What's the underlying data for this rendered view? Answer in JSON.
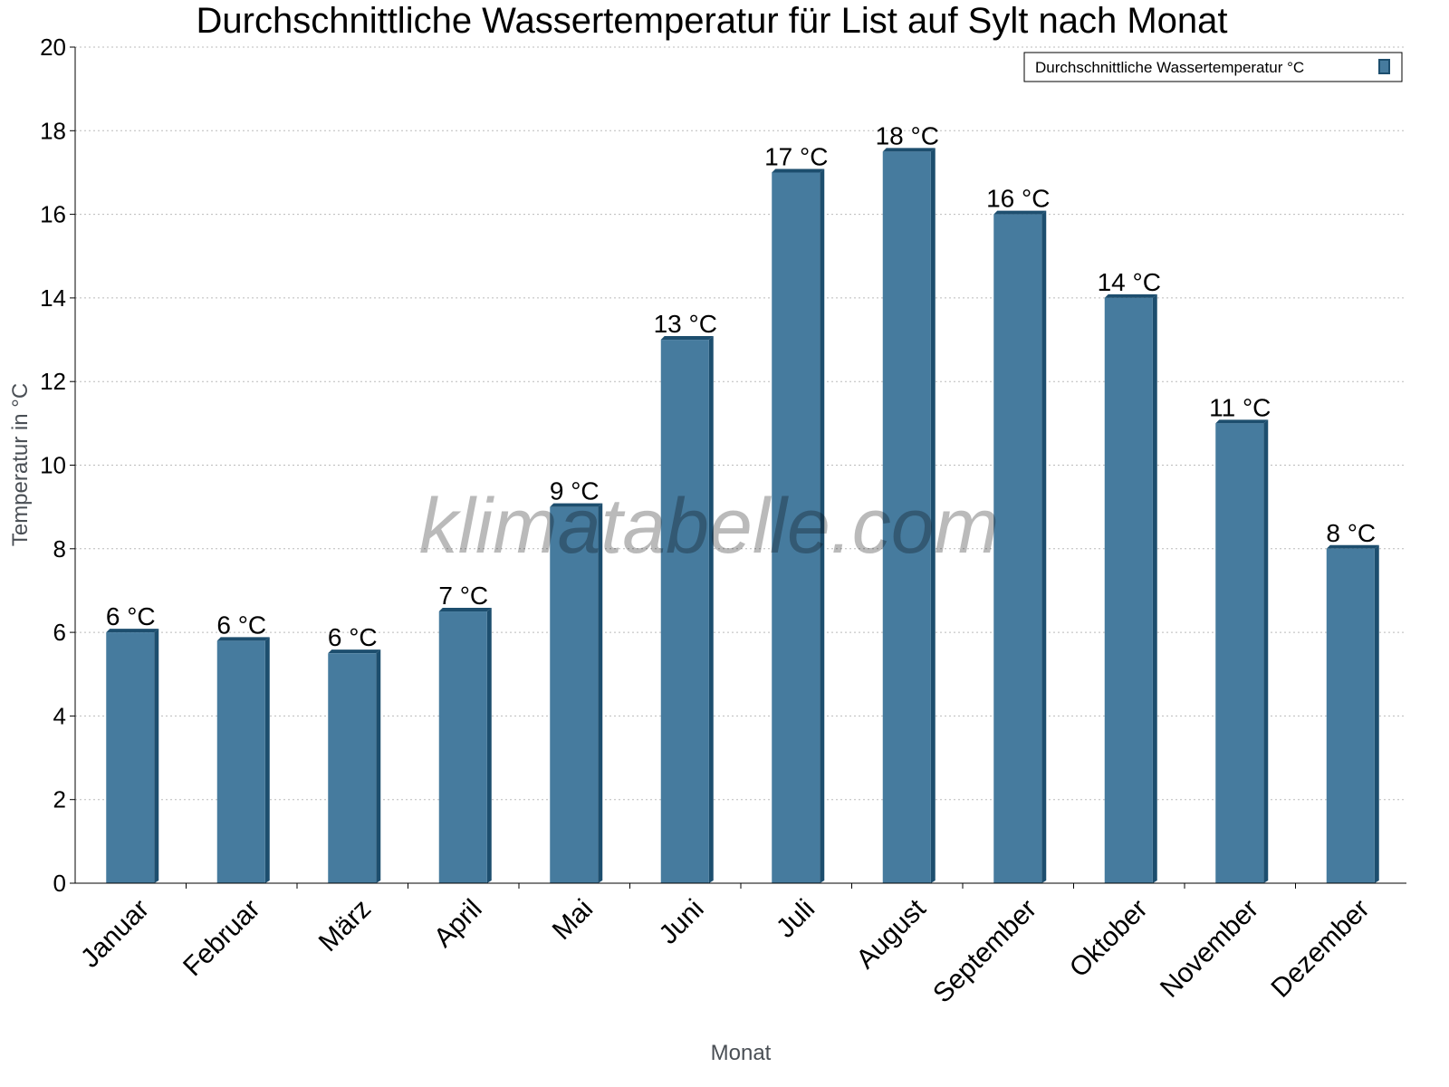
{
  "chart_data": {
    "type": "bar",
    "title": "Durchschnittliche Wassertemperatur für List auf Sylt nach Monat",
    "xlabel": "Monat",
    "ylabel": "Temperatur in °C",
    "ylim": [
      0,
      20
    ],
    "yticks": [
      "0",
      "2",
      "4",
      "6",
      "8",
      "10",
      "12",
      "14",
      "16",
      "18",
      "20"
    ],
    "grid": true,
    "legend_position": "top-right",
    "categories": [
      "Januar",
      "Februar",
      "März",
      "April",
      "Mai",
      "Juni",
      "Juli",
      "August",
      "September",
      "Oktober",
      "November",
      "Dezember"
    ],
    "series": [
      {
        "name": "Durchschnittliche Wassertemperatur °C",
        "values": [
          6.0,
          5.8,
          5.5,
          6.5,
          9.0,
          13.0,
          17.0,
          17.5,
          16.0,
          14.0,
          11.0,
          8.0
        ],
        "labels": [
          "6 °C",
          "6 °C",
          "6 °C",
          "7 °C",
          "9 °C",
          "13 °C",
          "17 °C",
          "18 °C",
          "16 °C",
          "14 °C",
          "11 °C",
          "8 °C"
        ],
        "color": "#467b9e",
        "side_color": "#1d4e6e"
      }
    ],
    "watermark": "klimatabelle.com"
  }
}
